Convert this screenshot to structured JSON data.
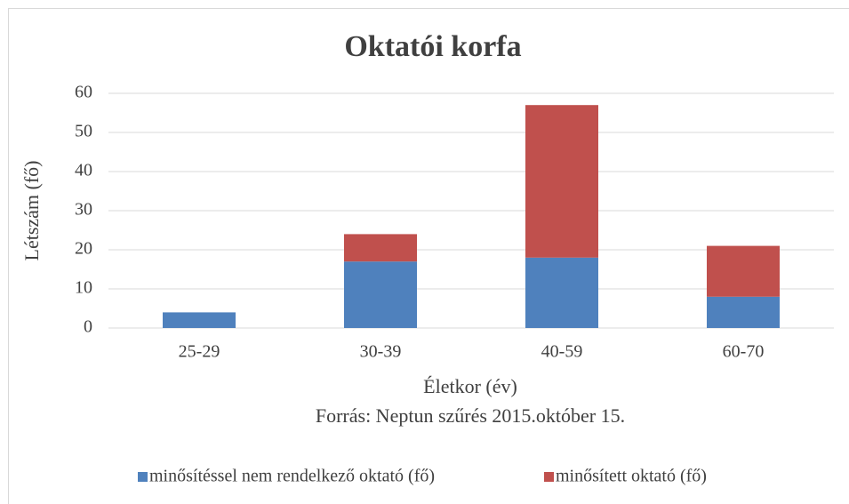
{
  "chart_data": {
    "type": "stacked_bar",
    "title": "Oktatói korfa",
    "x_label": "Életkor (év)",
    "y_label": "Létszám (fő)",
    "annotation": "Forrás: Neptun szűrés 2015.október 15.",
    "categories": [
      "25-29",
      "30-39",
      "40-59",
      "60-70"
    ],
    "series": [
      {
        "name": "minősítéssel nem rendelkező oktató (fő)",
        "color": "#4f81bd",
        "values": [
          4,
          17,
          18,
          8
        ]
      },
      {
        "name": "minősített oktató (fő)",
        "color": "#c0504d",
        "values": [
          0,
          7,
          39,
          13
        ]
      }
    ],
    "ylim": [
      0,
      60
    ],
    "yticks": [
      0,
      10,
      20,
      30,
      40,
      50,
      60
    ],
    "grid": true,
    "legend": "bottom"
  }
}
